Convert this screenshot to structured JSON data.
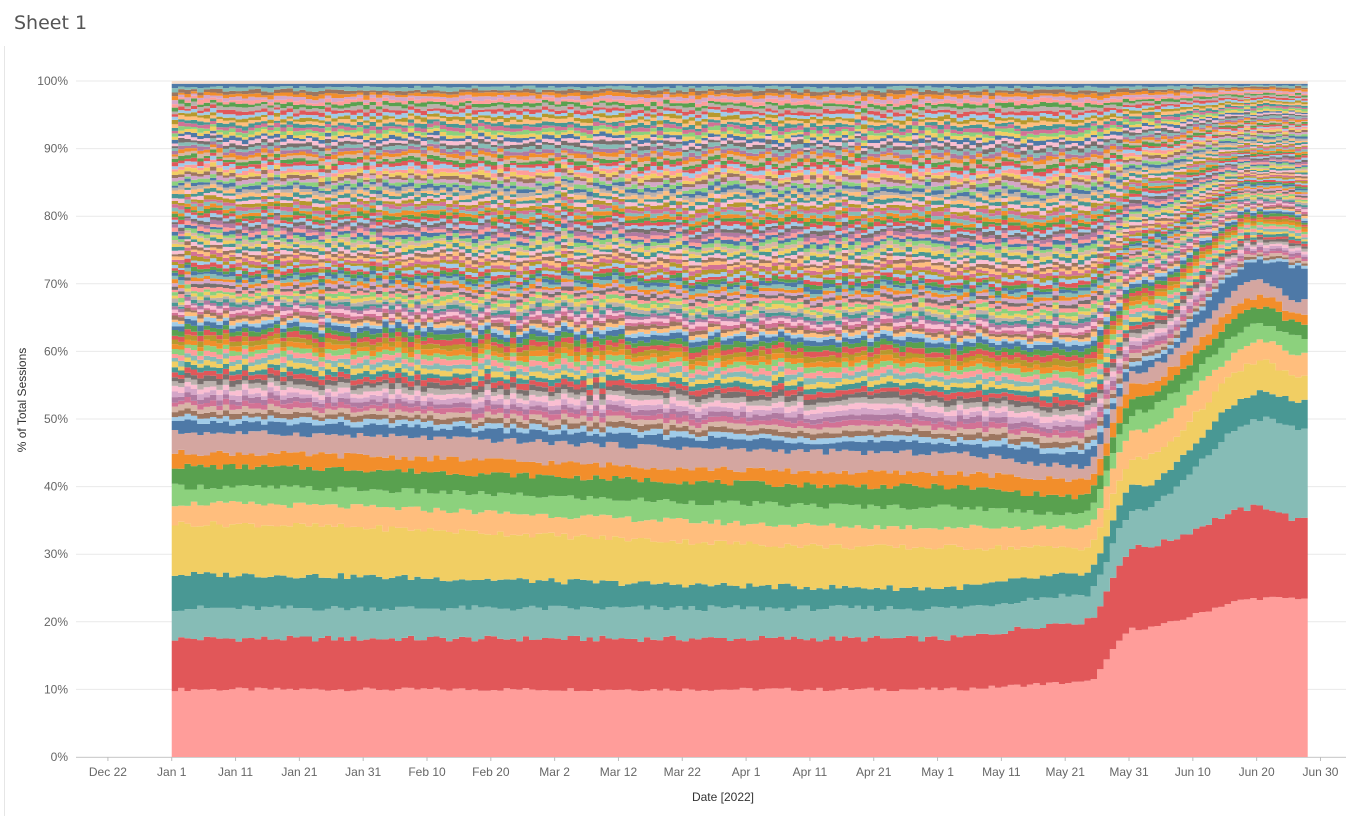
{
  "sheet": {
    "title": "Sheet 1"
  },
  "chart_data": {
    "type": "area",
    "stacked": "percent",
    "title": "",
    "xlabel": "Date [2022]",
    "ylabel": "% of Total Sessions",
    "x_domain": [
      "2021-12-17",
      "2022-07-04"
    ],
    "data_range": [
      "2022-01-01",
      "2022-06-27"
    ],
    "ylim": [
      0,
      100
    ],
    "y_ticks": [
      "0%",
      "10%",
      "20%",
      "30%",
      "40%",
      "50%",
      "60%",
      "70%",
      "80%",
      "90%",
      "100%"
    ],
    "x_ticks": [
      {
        "date": "2021-12-22",
        "label": "Dec 22"
      },
      {
        "date": "2022-01-01",
        "label": "Jan 1"
      },
      {
        "date": "2022-01-11",
        "label": "Jan 11"
      },
      {
        "date": "2022-01-21",
        "label": "Jan 21"
      },
      {
        "date": "2022-01-31",
        "label": "Jan 31"
      },
      {
        "date": "2022-02-10",
        "label": "Feb 10"
      },
      {
        "date": "2022-02-20",
        "label": "Feb 20"
      },
      {
        "date": "2022-03-02",
        "label": "Mar 2"
      },
      {
        "date": "2022-03-12",
        "label": "Mar 12"
      },
      {
        "date": "2022-03-22",
        "label": "Mar 22"
      },
      {
        "date": "2022-04-01",
        "label": "Apr 1"
      },
      {
        "date": "2022-04-11",
        "label": "Apr 11"
      },
      {
        "date": "2022-04-21",
        "label": "Apr 21"
      },
      {
        "date": "2022-05-01",
        "label": "May 1"
      },
      {
        "date": "2022-05-11",
        "label": "May 11"
      },
      {
        "date": "2022-05-21",
        "label": "May 21"
      },
      {
        "date": "2022-05-31",
        "label": "May 31"
      },
      {
        "date": "2022-06-10",
        "label": "Jun 10"
      },
      {
        "date": "2022-06-20",
        "label": "Jun 20"
      },
      {
        "date": "2022-06-30",
        "label": "Jun 30"
      }
    ],
    "grid": true,
    "legend": "none",
    "series_boundaries_pct": [
      {
        "x": [
          "2022-01-01",
          "2022-05-01",
          "2022-05-24",
          "2022-06-01",
          "2022-06-21",
          "2022-06-27"
        ],
        "y": [
          10,
          10,
          11,
          19,
          23.5,
          23.5
        ]
      },
      {
        "x": [
          "2022-01-01",
          "2022-05-01",
          "2022-05-24",
          "2022-06-01",
          "2022-06-21",
          "2022-06-27"
        ],
        "y": [
          17.5,
          17.5,
          20,
          31,
          37,
          35
        ]
      },
      {
        "x": [
          "2022-01-01",
          "2022-05-01",
          "2022-05-24",
          "2022-06-01",
          "2022-06-21",
          "2022-06-27"
        ],
        "y": [
          22,
          22,
          24,
          36.5,
          50,
          48.5
        ]
      },
      {
        "x": [
          "2022-01-01",
          "2022-05-01",
          "2022-05-24",
          "2022-06-01",
          "2022-06-21",
          "2022-06-27"
        ],
        "y": [
          27,
          25,
          27,
          40,
          54,
          52.5
        ]
      },
      {
        "x": [
          "2022-01-01",
          "2022-05-01",
          "2022-05-24",
          "2022-06-01",
          "2022-06-21",
          "2022-06-27"
        ],
        "y": [
          34.5,
          31,
          31,
          44,
          58.5,
          56
        ]
      },
      {
        "x": [
          "2022-01-01",
          "2022-05-01",
          "2022-05-24",
          "2022-06-01",
          "2022-06-21",
          "2022-06-27"
        ],
        "y": [
          37.5,
          34,
          34,
          48,
          61.5,
          59.5
        ]
      },
      {
        "x": [
          "2022-01-01",
          "2022-05-01",
          "2022-05-24",
          "2022-06-01",
          "2022-06-21",
          "2022-06-27"
        ],
        "y": [
          40,
          37,
          36,
          51,
          64,
          62
        ]
      },
      {
        "x": [
          "2022-01-01",
          "2022-05-01",
          "2022-05-24",
          "2022-06-01",
          "2022-06-21",
          "2022-06-27"
        ],
        "y": [
          43,
          40,
          38.5,
          53,
          66.5,
          64
        ]
      },
      {
        "x": [
          "2022-01-01",
          "2022-05-01",
          "2022-05-24",
          "2022-06-01",
          "2022-06-21",
          "2022-06-27"
        ],
        "y": [
          45,
          42,
          41,
          55,
          68,
          65.5
        ]
      },
      {
        "x": [
          "2022-01-01",
          "2022-05-01",
          "2022-05-24",
          "2022-06-01",
          "2022-06-21",
          "2022-06-27"
        ],
        "y": [
          48,
          45,
          43,
          57,
          70.5,
          67.5
        ]
      },
      {
        "x": [
          "2022-01-01",
          "2022-05-01",
          "2022-05-24",
          "2022-06-01",
          "2022-06-21",
          "2022-06-27"
        ],
        "y": [
          49.5,
          46.5,
          45,
          58,
          73.5,
          72.5
        ]
      }
    ]
  }
}
